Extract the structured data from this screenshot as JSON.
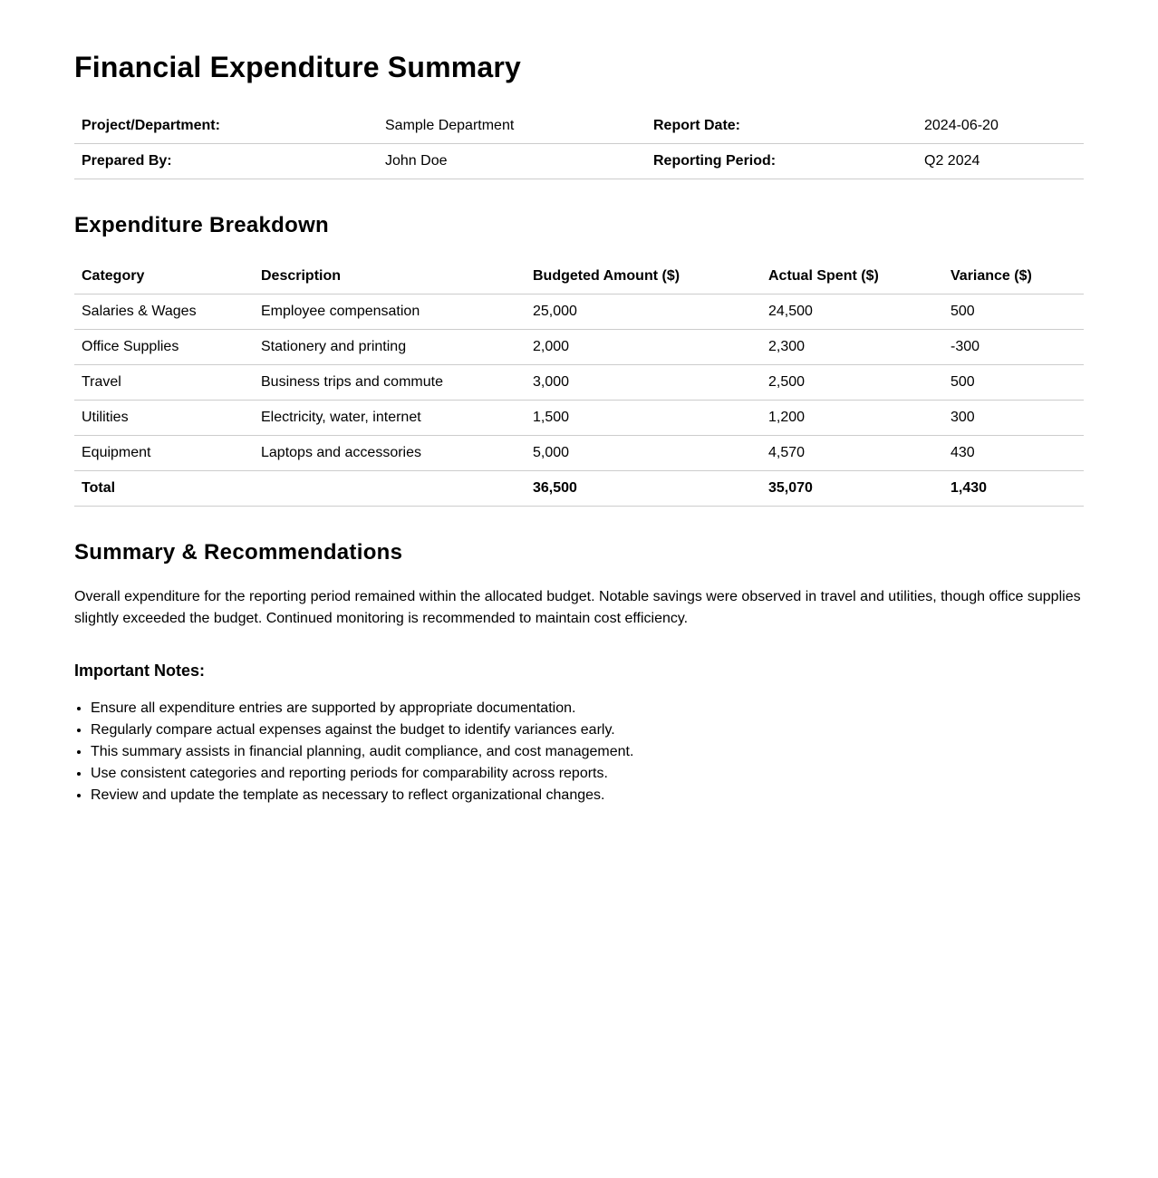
{
  "title": "Financial Expenditure Summary",
  "meta": {
    "rows": [
      {
        "label1": "Project/Department:",
        "value1": "Sample Department",
        "label2": "Report Date:",
        "value2": "2024-06-20"
      },
      {
        "label1": "Prepared By:",
        "value1": "John Doe",
        "label2": "Reporting Period:",
        "value2": "Q2 2024"
      }
    ]
  },
  "breakdown": {
    "heading": "Expenditure Breakdown",
    "columns": [
      "Category",
      "Description",
      "Budgeted Amount ($)",
      "Actual Spent ($)",
      "Variance ($)"
    ],
    "rows": [
      [
        "Salaries & Wages",
        "Employee compensation",
        "25,000",
        "24,500",
        "500"
      ],
      [
        "Office Supplies",
        "Stationery and printing",
        "2,000",
        "2,300",
        "-300"
      ],
      [
        "Travel",
        "Business trips and commute",
        "3,000",
        "2,500",
        "500"
      ],
      [
        "Utilities",
        "Electricity, water, internet",
        "1,500",
        "1,200",
        "300"
      ],
      [
        "Equipment",
        "Laptops and accessories",
        "5,000",
        "4,570",
        "430"
      ]
    ],
    "total": [
      "Total",
      "",
      "36,500",
      "35,070",
      "1,430"
    ]
  },
  "summary": {
    "heading": "Summary & Recommendations",
    "text": "Overall expenditure for the reporting period remained within the allocated budget. Notable savings were observed in travel and utilities, though office supplies slightly exceeded the budget. Continued monitoring is recommended to maintain cost efficiency.",
    "notes_heading": "Important Notes:",
    "notes": [
      "Ensure all expenditure entries are supported by appropriate documentation.",
      "Regularly compare actual expenses against the budget to identify variances early.",
      "This summary assists in financial planning, audit compliance, and cost management.",
      "Use consistent categories and reporting periods for comparability across reports.",
      "Review and update the template as necessary to reflect organizational changes."
    ]
  }
}
